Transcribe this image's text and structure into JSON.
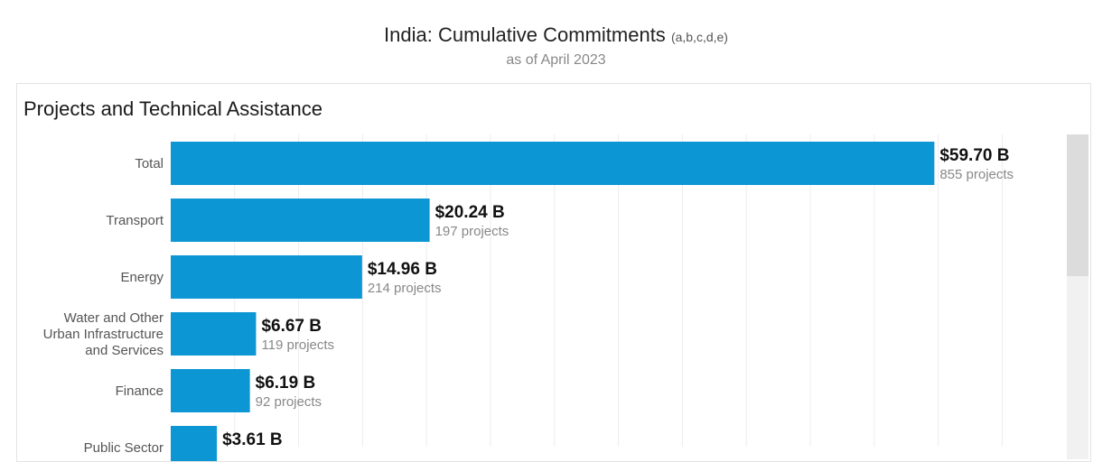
{
  "header": {
    "title": "India: Cumulative Commitments",
    "notes": "(a,b,c,d,e)",
    "subtitle": "as of April 2023"
  },
  "panel": {
    "title": "Projects and Technical Assistance"
  },
  "colors": {
    "bar": "#0d96d4",
    "gridline": "#ececec"
  },
  "chart_data": {
    "type": "bar",
    "orientation": "horizontal",
    "title": "Projects and Technical Assistance",
    "xlim": [
      0,
      100
    ],
    "grid": true,
    "categories": [
      "Total",
      "Transport",
      "Energy",
      "Water and Other Urban Infrastructure and Services",
      "Finance",
      "Public Sector"
    ],
    "category_lines": [
      [
        "Total"
      ],
      [
        "Transport"
      ],
      [
        "Energy"
      ],
      [
        "Water and Other",
        "Urban Infrastructure",
        "and Services"
      ],
      [
        "Finance"
      ],
      [
        "Public Sector"
      ]
    ],
    "values": [
      59.7,
      20.24,
      14.96,
      6.67,
      6.19,
      3.61
    ],
    "value_labels": [
      "$59.70 B",
      "$20.24 B",
      "$14.96 B",
      "$6.67 B",
      "$6.19 B",
      "$3.61 B"
    ],
    "project_labels": [
      "855 projects",
      "197 projects",
      "214 projects",
      "119 projects",
      "92 projects",
      ""
    ]
  }
}
